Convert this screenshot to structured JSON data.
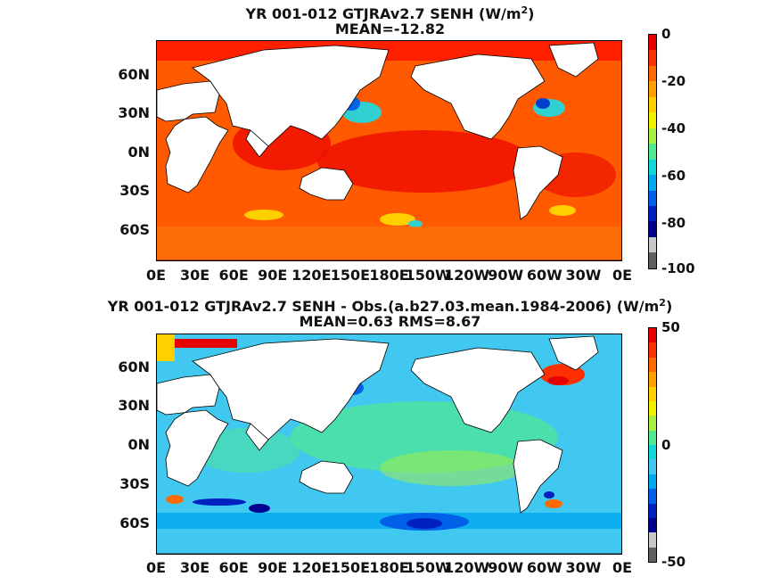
{
  "panels": [
    {
      "title_line1": "YR 001-012 GTJRAv2.7  SENH (W/m",
      "title_sup": "2",
      "title_line1_end": ")",
      "title_line2": "MEAN=-12.82",
      "colorbar_labels": [
        "0",
        "-20",
        "-40",
        "-60",
        "-80",
        "-100"
      ],
      "colorbar_colors": [
        "#e60000",
        "#ff3000",
        "#ff6a00",
        "#ffa000",
        "#ffd000",
        "#f0f000",
        "#a8f040",
        "#50e890",
        "#10d8d8",
        "#00a8f0",
        "#0060e8",
        "#0020c0",
        "#000090",
        "#c8c8c8",
        "#606060"
      ]
    },
    {
      "title_line1": "YR 001-012 GTJRAv2.7 SENH - Obs.(a.b27.03.mean.1984-2006) (W/m",
      "title_sup": "2",
      "title_line1_end": ")",
      "title_line2": "MEAN=0.63 RMS=8.67",
      "colorbar_labels": [
        "50",
        "0",
        "-50"
      ],
      "colorbar_colors": [
        "#e60000",
        "#ff3000",
        "#ff6a00",
        "#ffa000",
        "#ffd000",
        "#f0f000",
        "#a8f040",
        "#50e890",
        "#10d8d8",
        "#40c8f0",
        "#00a8f0",
        "#0060e8",
        "#0020c0",
        "#000090",
        "#c8c8c8",
        "#606060"
      ]
    }
  ],
  "lat_labels": [
    "60N",
    "30N",
    "0N",
    "30S",
    "60S"
  ],
  "lon_labels": [
    "0E",
    "30E",
    "60E",
    "90E",
    "120E",
    "150E",
    "180E",
    "150W",
    "120W",
    "90W",
    "60W",
    "30W",
    "0E"
  ],
  "colors": {
    "land": "#ffffff",
    "coast": "#000000"
  }
}
